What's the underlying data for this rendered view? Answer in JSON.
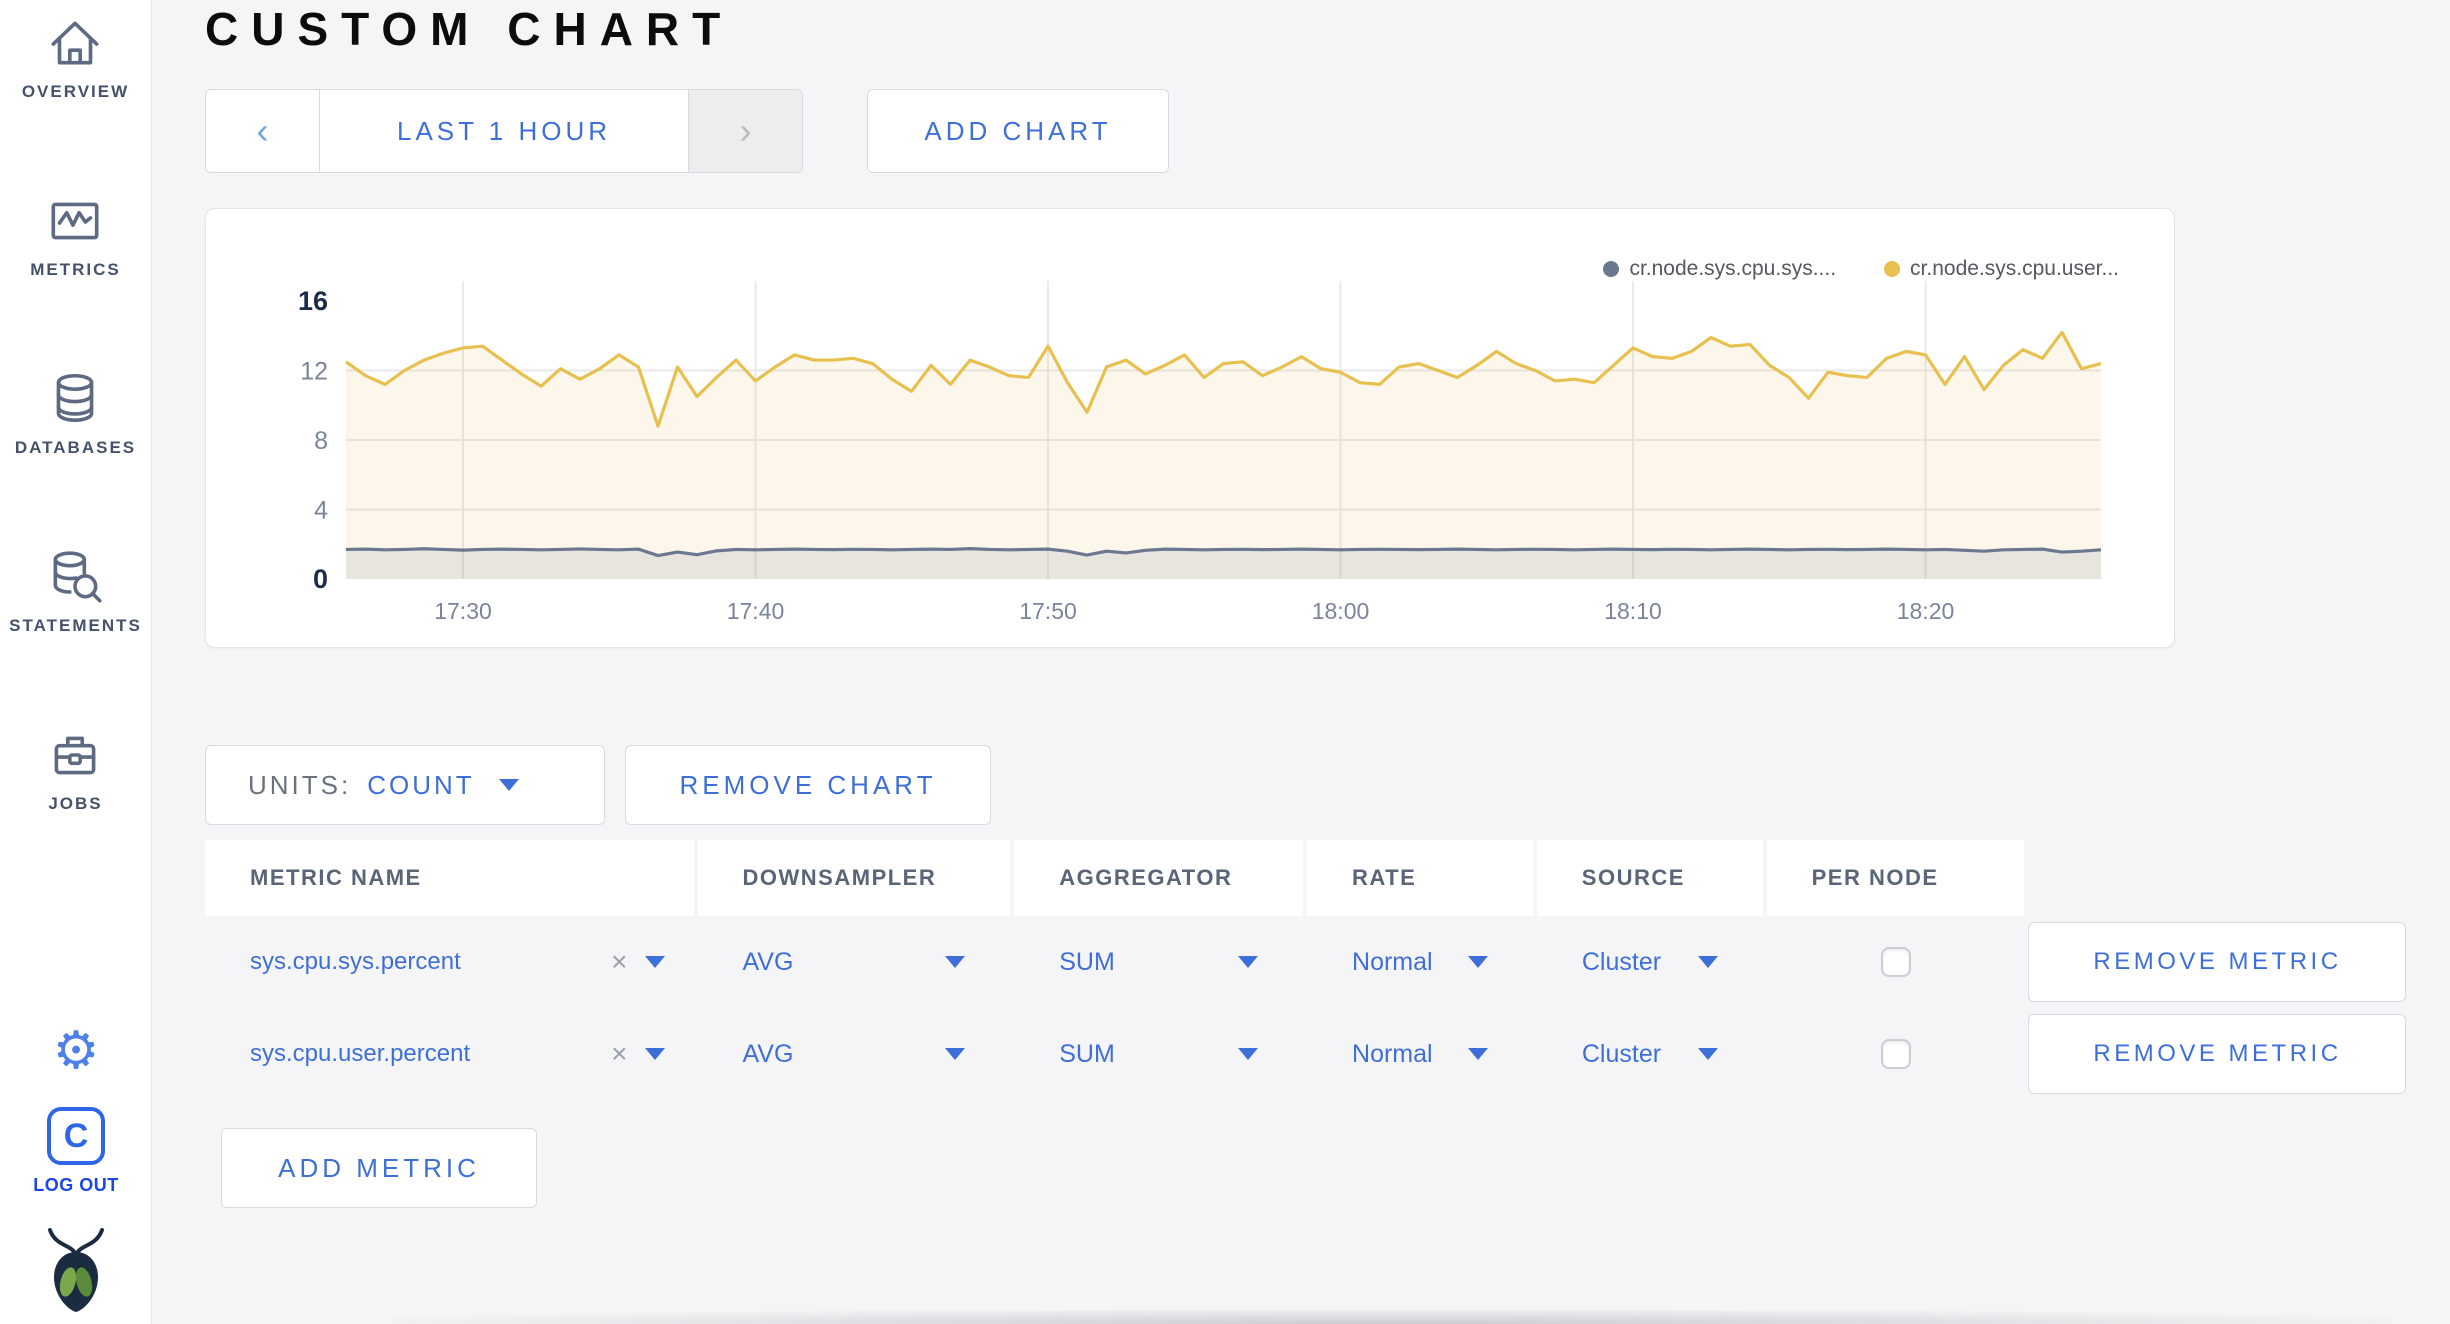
{
  "page": {
    "title": "CUSTOM CHART"
  },
  "sidebar": {
    "items": [
      {
        "label": "OVERVIEW"
      },
      {
        "label": "METRICS"
      },
      {
        "label": "DATABASES"
      },
      {
        "label": "STATEMENTS"
      },
      {
        "label": "JOBS"
      }
    ],
    "gear_icon": "⚙",
    "logout_icon_letter": "C",
    "logout_label": "LOG OUT"
  },
  "toolbar": {
    "prev_icon": "‹",
    "time_range_label": "LAST 1 HOUR",
    "next_icon": "›",
    "add_chart_label": "ADD CHART"
  },
  "chart_controls": {
    "units_label": "UNITS:",
    "units_value": "COUNT",
    "remove_chart_label": "REMOVE CHART",
    "add_metric_label": "ADD METRIC"
  },
  "chart_data": {
    "type": "line",
    "title": "",
    "xlabel": "",
    "ylabel": "",
    "grid": true,
    "legend_position": "top-right",
    "y_max": 16,
    "y_ticks": [
      0,
      4,
      8,
      12,
      16
    ],
    "x_span_min": 60,
    "x_start_label": "17:26",
    "x_ticks": [
      {
        "offset_min": 4,
        "label": "17:30"
      },
      {
        "offset_min": 14,
        "label": "17:40"
      },
      {
        "offset_min": 24,
        "label": "17:50"
      },
      {
        "offset_min": 34,
        "label": "18:00"
      },
      {
        "offset_min": 44,
        "label": "18:10"
      },
      {
        "offset_min": 54,
        "label": "18:20"
      }
    ],
    "series": [
      {
        "name": "cr.node.sys.cpu.sys....",
        "color": "#6b7890",
        "fill_opacity": 0.14,
        "values": [
          1.7,
          1.72,
          1.68,
          1.7,
          1.74,
          1.7,
          1.66,
          1.7,
          1.72,
          1.7,
          1.68,
          1.7,
          1.73,
          1.7,
          1.68,
          1.72,
          1.35,
          1.55,
          1.4,
          1.62,
          1.7,
          1.68,
          1.7,
          1.72,
          1.7,
          1.69,
          1.71,
          1.7,
          1.68,
          1.7,
          1.72,
          1.7,
          1.75,
          1.7,
          1.68,
          1.7,
          1.72,
          1.6,
          1.38,
          1.6,
          1.5,
          1.65,
          1.72,
          1.7,
          1.68,
          1.7,
          1.71,
          1.69,
          1.7,
          1.72,
          1.7,
          1.68,
          1.7,
          1.71,
          1.7,
          1.69,
          1.7,
          1.72,
          1.7,
          1.68,
          1.7,
          1.71,
          1.7,
          1.68,
          1.7,
          1.72,
          1.7,
          1.69,
          1.71,
          1.7,
          1.68,
          1.7,
          1.72,
          1.7,
          1.68,
          1.7,
          1.71,
          1.69,
          1.7,
          1.72,
          1.7,
          1.68,
          1.7,
          1.65,
          1.6,
          1.68,
          1.7,
          1.72,
          1.55,
          1.6,
          1.68
        ]
      },
      {
        "name": "cr.node.sys.cpu.user...",
        "color": "#e8c050",
        "fill_opacity": 0.12,
        "values": [
          12.5,
          11.7,
          11.2,
          12.0,
          12.6,
          13.0,
          13.3,
          13.4,
          12.6,
          11.8,
          11.1,
          12.1,
          11.5,
          12.1,
          12.9,
          12.2,
          8.8,
          12.2,
          10.5,
          11.6,
          12.6,
          11.4,
          12.2,
          12.9,
          12.6,
          12.6,
          12.7,
          12.4,
          11.5,
          10.8,
          12.3,
          11.2,
          12.6,
          12.2,
          11.7,
          11.6,
          13.4,
          11.3,
          9.6,
          12.2,
          12.6,
          11.8,
          12.3,
          12.9,
          11.6,
          12.4,
          12.5,
          11.7,
          12.2,
          12.8,
          12.1,
          11.9,
          11.3,
          11.2,
          12.2,
          12.4,
          12.0,
          11.6,
          12.3,
          13.1,
          12.4,
          12.0,
          11.4,
          11.5,
          11.3,
          12.3,
          13.3,
          12.8,
          12.7,
          13.1,
          13.9,
          13.4,
          13.5,
          12.3,
          11.6,
          10.4,
          11.9,
          11.7,
          11.6,
          12.7,
          13.1,
          12.9,
          11.2,
          12.8,
          10.9,
          12.3,
          13.2,
          12.7,
          14.2,
          12.1,
          12.4
        ]
      }
    ]
  },
  "metrics_table": {
    "headers": [
      "METRIC NAME",
      "DOWNSAMPLER",
      "AGGREGATOR",
      "RATE",
      "SOURCE",
      "PER NODE",
      ""
    ],
    "remove_metric_label": "REMOVE METRIC",
    "clear_icon": "×",
    "rows": [
      {
        "metric": "sys.cpu.sys.percent",
        "downsampler": "AVG",
        "aggregator": "SUM",
        "rate": "Normal",
        "source": "Cluster",
        "per_node": false
      },
      {
        "metric": "sys.cpu.user.percent",
        "downsampler": "AVG",
        "aggregator": "SUM",
        "rate": "Normal",
        "source": "Cluster",
        "per_node": false
      }
    ]
  },
  "colors": {
    "accent_blue": "#3e6fd9",
    "series_sys": "#6b7890",
    "series_user": "#e8c050",
    "logout_blue": "#2e66e8"
  }
}
